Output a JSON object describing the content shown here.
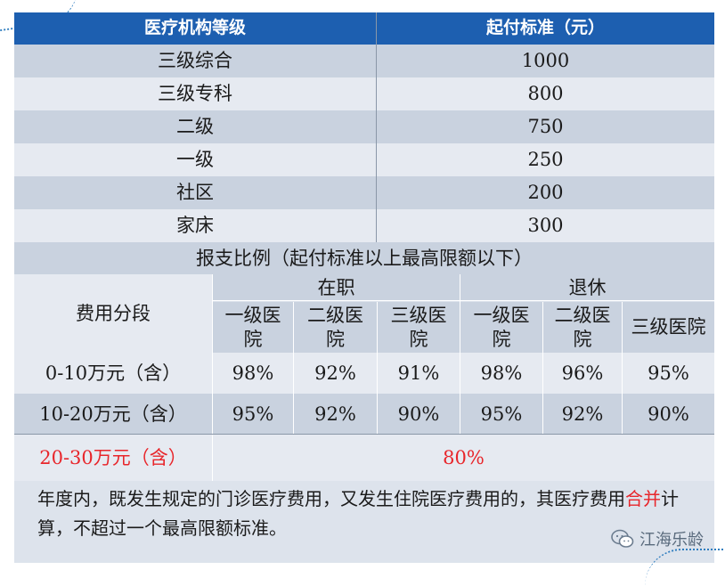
{
  "table": {
    "header": {
      "level": "医疗机构等级",
      "threshold": "起付标准（元）"
    },
    "rows": [
      {
        "level": "三级综合",
        "amount": "1000"
      },
      {
        "level": "三级专科",
        "amount": "800"
      },
      {
        "level": "二级",
        "amount": "750"
      },
      {
        "level": "一级",
        "amount": "250"
      },
      {
        "level": "社区",
        "amount": "200"
      },
      {
        "level": "家床",
        "amount": "300"
      }
    ],
    "ratio_title": "报支比例（起付标准以上最高限额以下）",
    "segment_label": "费用分段",
    "employed": "在职",
    "retired": "退休",
    "subcols": {
      "l1": "一级医院",
      "l2": "二级医院",
      "l3": "三级医院"
    },
    "segments": [
      {
        "range": "0-10万元（含）",
        "values": [
          "98%",
          "92%",
          "91%",
          "98%",
          "96%",
          "95%"
        ]
      },
      {
        "range": "10-20万元（含）",
        "values": [
          "95%",
          "92%",
          "90%",
          "95%",
          "92%",
          "90%"
        ]
      }
    ],
    "last_segment": {
      "range": "20-30万元（含）",
      "value": "80%"
    }
  },
  "note": {
    "part1": "年度内，既发生规定的门诊医疗费用，又发生住院医疗费用的，其医疗费用",
    "highlight": "合并",
    "part2": "计算，不超过一个最高限额标准。"
  },
  "watermark": {
    "name": "江海乐龄",
    "icon": "wechat-icon"
  },
  "colors": {
    "header_blue": "#1d5fb0",
    "highlight_red": "#e8262b"
  }
}
